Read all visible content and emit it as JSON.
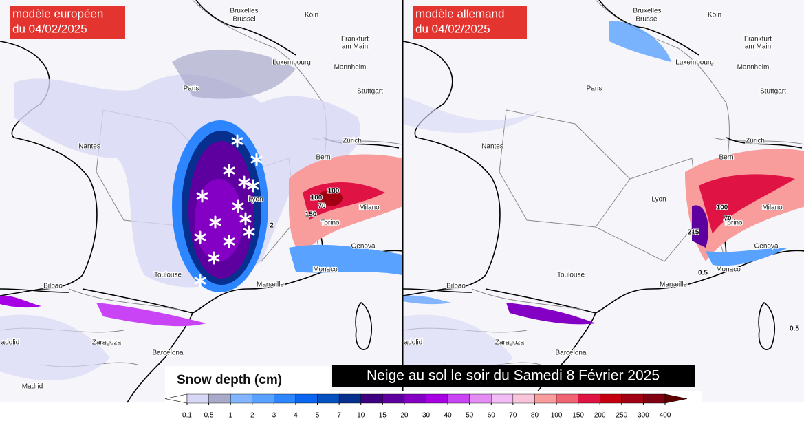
{
  "panels": [
    {
      "label": [
        "modèle européen",
        "du 04/02/2025"
      ],
      "cities": [
        "Bruxelles",
        "Brussel",
        "Köln",
        "Frankfurt",
        "am Main",
        "Luxembourg",
        "Mannheim",
        "Paris",
        "Stuttgart",
        "Nantes",
        "Zürich",
        "Bern",
        "Lyon",
        "Milano",
        "Torino",
        "Genova",
        "Monaco",
        "Toulouse",
        "Marseille",
        "Bilbao",
        "Zaragoza",
        "Barcelona",
        "adolid",
        "Madrid"
      ],
      "contour_labels": [
        100,
        70,
        150,
        100,
        2
      ]
    },
    {
      "label": [
        "modèle allemand",
        "du 04/02/2025"
      ],
      "cities": [
        "Bruxelles",
        "Brussel",
        "Köln",
        "Frankfurt",
        "am Main",
        "Luxembourg",
        "Mannheim",
        "Paris",
        "Stuttgart",
        "Nantes",
        "Zürich",
        "Bern",
        "Lyon",
        "Milano",
        "Torino",
        "Genova",
        "Monaco",
        "Toulouse",
        "Marseille",
        "Bilbao",
        "Zaragoza",
        "Barcelona",
        "adolid"
      ],
      "contour_labels": [
        215,
        100,
        70,
        0.5,
        0.5
      ]
    }
  ],
  "legend": {
    "title": "Snow depth (cm)",
    "ticks": [
      0.1,
      0.5,
      1,
      2,
      3,
      4,
      5,
      7,
      10,
      15,
      20,
      30,
      40,
      50,
      60,
      70,
      80,
      100,
      150,
      200,
      250,
      300,
      400
    ],
    "colors": [
      "#d8d8f6",
      "#a9a9c9",
      "#82b4ff",
      "#5aa2ff",
      "#2d86ff",
      "#0a66f0",
      "#0450c0",
      "#07308e",
      "#3e0080",
      "#5e00a0",
      "#8400c4",
      "#a800e4",
      "#c844f4",
      "#e48ef4",
      "#f2bcf4",
      "#f8c4da",
      "#f89c9c",
      "#f06474",
      "#e01444",
      "#c40010",
      "#a20012",
      "#800012"
    ],
    "under_color": "#ffffff",
    "over_color": "#5e0000"
  },
  "caption": "Neige au sol le soir du Samedi 8 Février 2025"
}
